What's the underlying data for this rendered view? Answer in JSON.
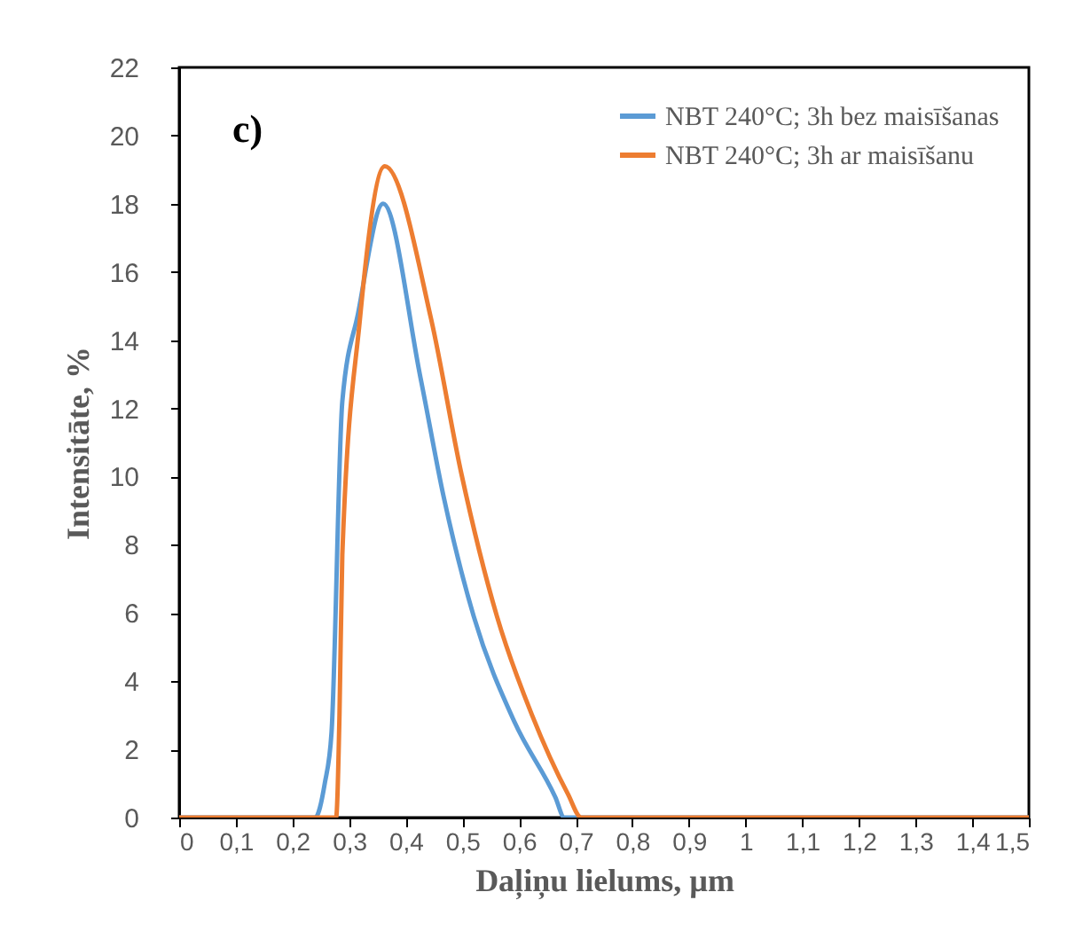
{
  "chart_data": {
    "type": "line",
    "xlabel": "Daļiņu lielums, µm",
    "ylabel": "Intensitāte, %",
    "annotations": [
      "c)"
    ],
    "xlim": [
      0,
      1.5
    ],
    "xticks": [
      0,
      {
        "value": 0.1,
        "label": "0,1"
      },
      {
        "value": 0.2,
        "label": "0,2"
      },
      {
        "value": 0.3,
        "label": "0,3"
      },
      {
        "value": 0.4,
        "label": "0,4"
      },
      {
        "value": 0.5,
        "label": "0,5"
      },
      {
        "value": 0.6,
        "label": "0,6"
      },
      {
        "value": 0.7,
        "label": "0,7"
      },
      {
        "value": 0.8,
        "label": "0,8"
      },
      {
        "value": 0.9,
        "label": "0,9"
      },
      1,
      {
        "value": 1.1,
        "label": "1,1"
      },
      {
        "value": 1.2,
        "label": "1,2"
      },
      {
        "value": 1.3,
        "label": "1,3"
      },
      {
        "value": 1.4,
        "label": "1,4"
      },
      {
        "value": 1.5,
        "label": "1,5"
      }
    ],
    "ylim": [
      0,
      22
    ],
    "yticks": [
      0,
      2,
      4,
      6,
      8,
      10,
      12,
      14,
      16,
      18,
      20,
      22
    ],
    "grid": false,
    "legend": "top right",
    "line_style": "solid",
    "marker": "none",
    "series": [
      {
        "name": "NBT 240°C; 3h bez maisīšanas",
        "color": "#5b9bd5",
        "x": [
          0,
          0.24,
          0.257,
          0.269,
          0.288,
          0.316,
          0.36,
          0.426,
          0.467,
          0.52,
          0.592,
          0.664,
          0.68,
          1.5
        ],
        "values": [
          0,
          0,
          1,
          2.5,
          12.2,
          14.8,
          18,
          12.9,
          9.4,
          5.9,
          2.8,
          0.6,
          0,
          0
        ]
      },
      {
        "name": "NBT 240°C; 3h ar maisīšanu",
        "color": "#ed7d31",
        "x": [
          0,
          0.277,
          0.283,
          0.288,
          0.319,
          0.363,
          0.445,
          0.498,
          0.561,
          0.623,
          0.686,
          0.71,
          1.5
        ],
        "values": [
          0,
          0,
          3,
          7.7,
          14.6,
          19.1,
          14.6,
          10.1,
          5.9,
          3,
          0.7,
          0,
          0
        ]
      }
    ]
  }
}
